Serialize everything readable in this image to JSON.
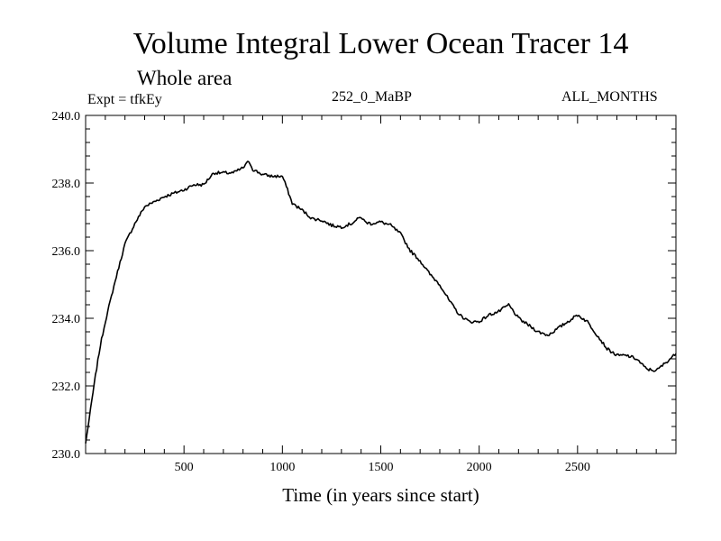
{
  "chart_data": {
    "type": "line",
    "title": "Volume Integral Lower Ocean Tracer 14",
    "subtitle": "Whole area",
    "annotations": {
      "experiment": "Expt = tfkEy",
      "case": "252_0_MaBP",
      "period": "ALL_MONTHS"
    },
    "xlabel": "Time (in years since start)",
    "ylabel": "",
    "xlim": [
      0,
      3000
    ],
    "ylim": [
      230.0,
      240.0
    ],
    "x_ticks": [
      500,
      1000,
      1500,
      2000,
      2500
    ],
    "y_ticks": [
      230.0,
      232.0,
      234.0,
      236.0,
      238.0,
      240.0
    ],
    "grid": false,
    "series": [
      {
        "x": [
          0,
          25,
          50,
          75,
          100,
          150,
          200,
          250,
          300,
          350,
          400,
          450,
          500,
          550,
          600,
          650,
          700,
          750,
          800,
          830,
          850,
          900,
          950,
          1000,
          1020,
          1050,
          1100,
          1150,
          1200,
          1250,
          1300,
          1350,
          1400,
          1420,
          1450,
          1500,
          1550,
          1600,
          1650,
          1700,
          1750,
          1800,
          1850,
          1900,
          1950,
          2000,
          2050,
          2100,
          2150,
          2200,
          2250,
          2300,
          2350,
          2400,
          2450,
          2500,
          2550,
          2600,
          2650,
          2700,
          2750,
          2800,
          2850,
          2900,
          2950,
          3000
        ],
        "y": [
          230.3,
          231.3,
          232.3,
          233.2,
          233.9,
          235.1,
          236.2,
          236.8,
          237.3,
          237.45,
          237.6,
          237.7,
          237.8,
          237.95,
          237.95,
          238.3,
          238.3,
          238.3,
          238.45,
          238.65,
          238.4,
          238.25,
          238.2,
          238.2,
          237.9,
          237.4,
          237.2,
          236.95,
          236.9,
          236.75,
          236.7,
          236.8,
          237.0,
          236.85,
          236.8,
          236.85,
          236.75,
          236.5,
          236.0,
          235.7,
          235.3,
          235.0,
          234.5,
          234.1,
          233.9,
          233.9,
          234.1,
          234.2,
          234.4,
          234.0,
          233.8,
          233.6,
          233.5,
          233.7,
          233.9,
          234.1,
          233.9,
          233.5,
          233.1,
          232.9,
          232.9,
          232.8,
          232.5,
          232.45,
          232.7,
          232.95
        ]
      }
    ]
  }
}
